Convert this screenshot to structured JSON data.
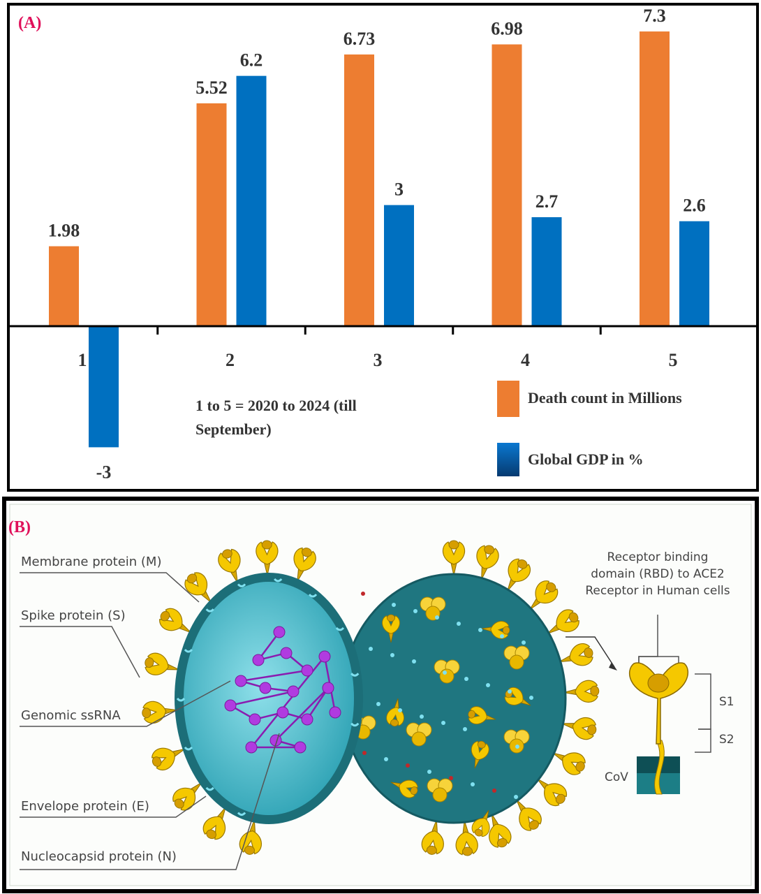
{
  "panel_a": {
    "label": "(A)",
    "note_line1": "1 to 5 = 2020 to 2024 (till",
    "note_line2": "September)"
  },
  "chart_data": {
    "type": "bar",
    "categories": [
      "1",
      "2",
      "3",
      "4",
      "5"
    ],
    "series": [
      {
        "name": "Death count in Millions",
        "color": "#ED7D31",
        "values": [
          1.98,
          5.52,
          6.73,
          6.98,
          7.3
        ],
        "labels": [
          "1.98",
          "5.52",
          "6.73",
          "6.98",
          "7.3"
        ]
      },
      {
        "name": "Global GDP in %",
        "color": "#0070C0",
        "values": [
          -3,
          6.2,
          3,
          2.7,
          2.6
        ],
        "labels": [
          "-3",
          "6.2",
          "3",
          "2.7",
          "2.6"
        ]
      }
    ],
    "title": "",
    "xlabel": "",
    "ylabel": "",
    "ylim": [
      -3.2,
      7.6
    ],
    "grid": false,
    "legend": "bottom-right"
  },
  "panel_b": {
    "label": "(B)",
    "labels": {
      "membrane": "Membrane protein (M)",
      "spike": "Spike protein (S)",
      "ssrna": "Genomic ssRNA",
      "envelope": "Envelope protein (E)",
      "nucleocapsid": "Nucleocapsid protein (N)",
      "rbd_line1": "Receptor binding",
      "rbd_line2": "domain (RBD) to ACE2",
      "rbd_line3": "Receptor in Human cells",
      "s1": "S1",
      "s2": "S2",
      "cov": "CoV"
    },
    "colors": {
      "spike": "#F5C800",
      "virus_outer": "#1E6F78",
      "virus_inner": "#5CC6D6",
      "rna": "#A020C8",
      "accent_label": "#E0105A"
    }
  }
}
